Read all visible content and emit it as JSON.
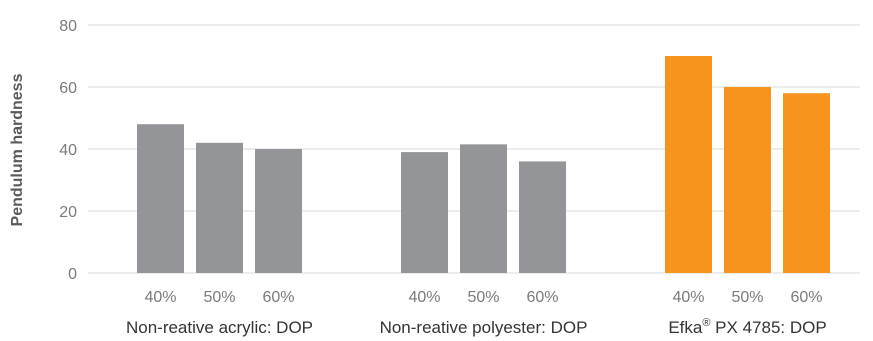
{
  "chart_data": {
    "type": "bar",
    "ylabel": "Pendulum hardness",
    "ylim": [
      0,
      80
    ],
    "yticks": [
      0,
      20,
      40,
      60,
      80
    ],
    "grid": true,
    "subcategories": [
      "40%",
      "50%",
      "60%"
    ],
    "groups": [
      {
        "label": "Non-reative acrylic: DOP",
        "values": [
          48,
          42,
          40
        ],
        "color": "#939598"
      },
      {
        "label": "Non-reative polyester: DOP",
        "values": [
          39,
          41.5,
          36
        ],
        "color": "#939598"
      },
      {
        "label_main": "Efka",
        "label_sup": "®",
        "label_rest": " PX 4785: DOP",
        "values": [
          70,
          60,
          58
        ],
        "color": "#f7941d"
      }
    ],
    "colors": {
      "grid": "#d9d9d9",
      "gray_bar": "#939598",
      "accent_bar": "#f7941d"
    }
  }
}
